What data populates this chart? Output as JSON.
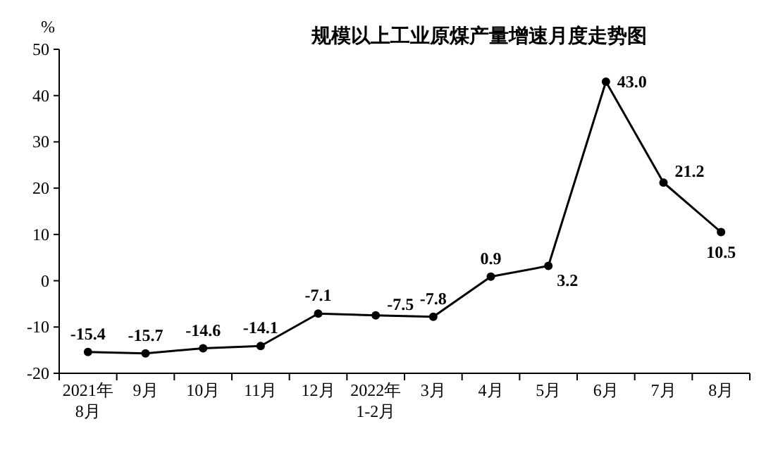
{
  "chart_data": {
    "type": "line",
    "title": "规模以上工业原煤产量增速月度走势图",
    "ylabel": "%",
    "categories": [
      "2021年\n8月",
      "9月",
      "10月",
      "11月",
      "12月",
      "2022年\n1-2月",
      "3月",
      "4月",
      "5月",
      "6月",
      "7月",
      "8月"
    ],
    "series": [
      {
        "color": "#000000",
        "values": [
          -15.4,
          -15.7,
          -14.6,
          -14.1,
          -7.1,
          -7.5,
          -7.8,
          0.9,
          3.2,
          43.0,
          21.2,
          10.5
        ],
        "value_labels": [
          "-15.4",
          "-15.7",
          "-14.6",
          "-14.1",
          "-7.1",
          "-7.5",
          "-7.8",
          "0.9",
          "3.2",
          "43.0",
          "21.2",
          "10.5"
        ]
      }
    ],
    "ylim": [
      -20,
      50
    ],
    "yticks": [
      -20,
      -10,
      0,
      10,
      20,
      30,
      40,
      50
    ],
    "grid": false,
    "marker": "circle",
    "line_style": "solid"
  }
}
